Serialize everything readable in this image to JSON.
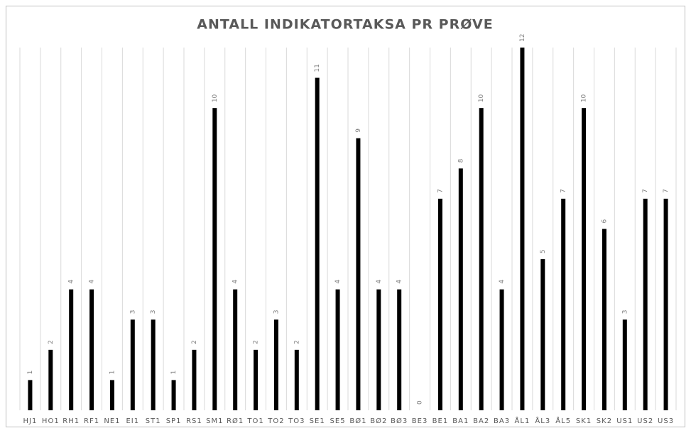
{
  "chart_data": {
    "type": "bar",
    "title": "ANTALL INDIKATORTAKSA PR PRØVE",
    "categories": [
      "HJ1",
      "HO1",
      "RH1",
      "RF1",
      "NE1",
      "EI1",
      "ST1",
      "SP1",
      "RS1",
      "SM1",
      "RØ1",
      "TO1",
      "TO2",
      "TO3",
      "SE1",
      "SE5",
      "BØ1",
      "BØ2",
      "BØ3",
      "BE3",
      "BE1",
      "BA1",
      "BA2",
      "BA3",
      "ÅL1",
      "ÅL3",
      "ÅL5",
      "SK1",
      "SK2",
      "US1",
      "US2",
      "US3"
    ],
    "values": [
      1,
      2,
      4,
      4,
      1,
      3,
      3,
      1,
      2,
      10,
      4,
      2,
      3,
      2,
      11,
      4,
      9,
      4,
      4,
      0,
      7,
      8,
      10,
      4,
      12,
      5,
      7,
      10,
      6,
      3,
      7,
      7
    ],
    "color": "#000000",
    "ylim": [
      0,
      12
    ],
    "grid": true
  }
}
